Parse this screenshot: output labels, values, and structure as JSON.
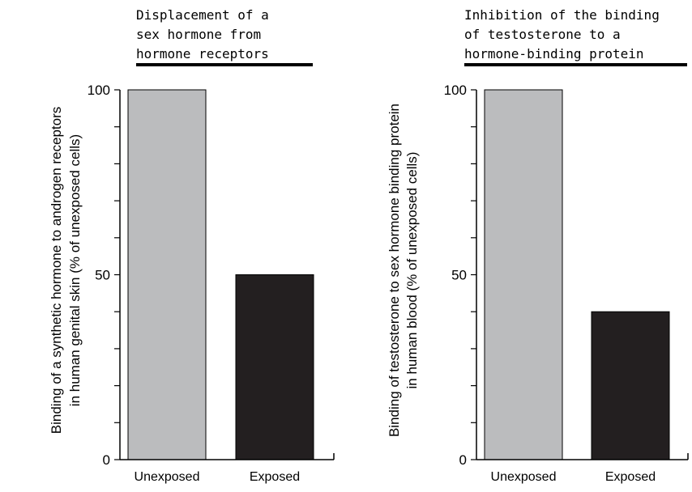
{
  "chart_data": [
    {
      "type": "bar",
      "title": [
        "Displacement of a",
        "sex hormone from",
        "hormone receptors"
      ],
      "ylabel": [
        "Binding of a synthetic hormone to androgen receptors",
        "in human genital skin (% of unexposed cells)"
      ],
      "xlabel": "",
      "categories": [
        "Unexposed",
        "Exposed"
      ],
      "values": [
        100,
        50
      ],
      "bar_colors": [
        "#bbbcbe",
        "#231f20"
      ],
      "ylim": [
        0,
        100
      ],
      "yticks": [
        0,
        50,
        100
      ],
      "minor_step": 10,
      "grid": false,
      "legend": "none"
    },
    {
      "type": "bar",
      "title": [
        "Inhibition of the binding",
        "of testosterone to a",
        "hormone-binding protein"
      ],
      "ylabel": [
        "Binding of testosterone to sex hormone binding protein",
        "in human blood (% of unexposed cells)"
      ],
      "xlabel": "",
      "categories": [
        "Unexposed",
        "Exposed"
      ],
      "values": [
        100,
        40
      ],
      "bar_colors": [
        "#bbbcbe",
        "#231f20"
      ],
      "ylim": [
        0,
        100
      ],
      "yticks": [
        0,
        50,
        100
      ],
      "minor_step": 10,
      "grid": false,
      "legend": "none"
    }
  ]
}
